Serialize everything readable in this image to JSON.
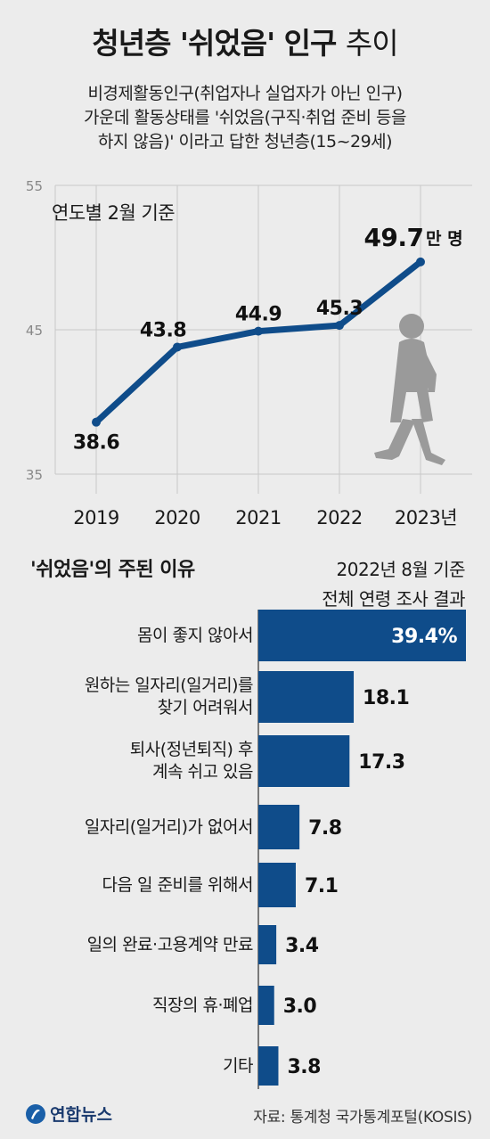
{
  "header": {
    "title_main": "청년층 '쉬었음' 인구",
    "title_light": "추이",
    "subtitle_lines": [
      "비경제활동인구(취업자나 실업자가 아닌 인구)",
      "가운데 활동상태를 '쉬었음(구직·취업 준비 등을",
      "하지 않음)' 이라고 답한 청년층(15~29세)"
    ]
  },
  "colors": {
    "line": "#0f4c8a",
    "bar": "#0f4c8a",
    "grid": "#c8c8c8",
    "person": "#9a9a9a"
  },
  "chart_data": [
    {
      "type": "line",
      "note": "연도별 2월 기준",
      "x": [
        "2019",
        "2020",
        "2021",
        "2022",
        "2023년"
      ],
      "values": [
        38.6,
        43.8,
        44.9,
        45.3,
        49.7
      ],
      "value_labels": [
        "38.6",
        "43.8",
        "44.9",
        "45.3",
        "49.7"
      ],
      "unit": "만 명",
      "yticks": [
        35,
        45,
        55
      ],
      "ylim": [
        35,
        55
      ],
      "grid": true
    },
    {
      "type": "bar",
      "orientation": "horizontal",
      "title": "'쉬었음'의 주된 이유",
      "note_lines": [
        "2022년 8월 기준",
        "전체 연령 조사 결과"
      ],
      "categories": [
        "몸이 좋지 않아서",
        "원하는 일자리(일거리)를\n찾기 어려워서",
        "퇴사(정년퇴직) 후\n계속 쉬고 있음",
        "일자리(일거리)가 없어서",
        "다음 일 준비를 위해서",
        "일의 완료·고용계약 만료",
        "직장의 휴·폐업",
        "기타"
      ],
      "values": [
        39.4,
        18.1,
        17.3,
        7.8,
        7.1,
        3.4,
        3.0,
        3.8
      ],
      "value_labels": [
        "39.4%",
        "18.1",
        "17.3",
        "7.8",
        "7.1",
        "3.4",
        "3.0",
        "3.8"
      ]
    }
  ],
  "footer": {
    "logo": "연합뉴스",
    "source": "자료: 통계청 국가통계포털(KOSIS)"
  }
}
